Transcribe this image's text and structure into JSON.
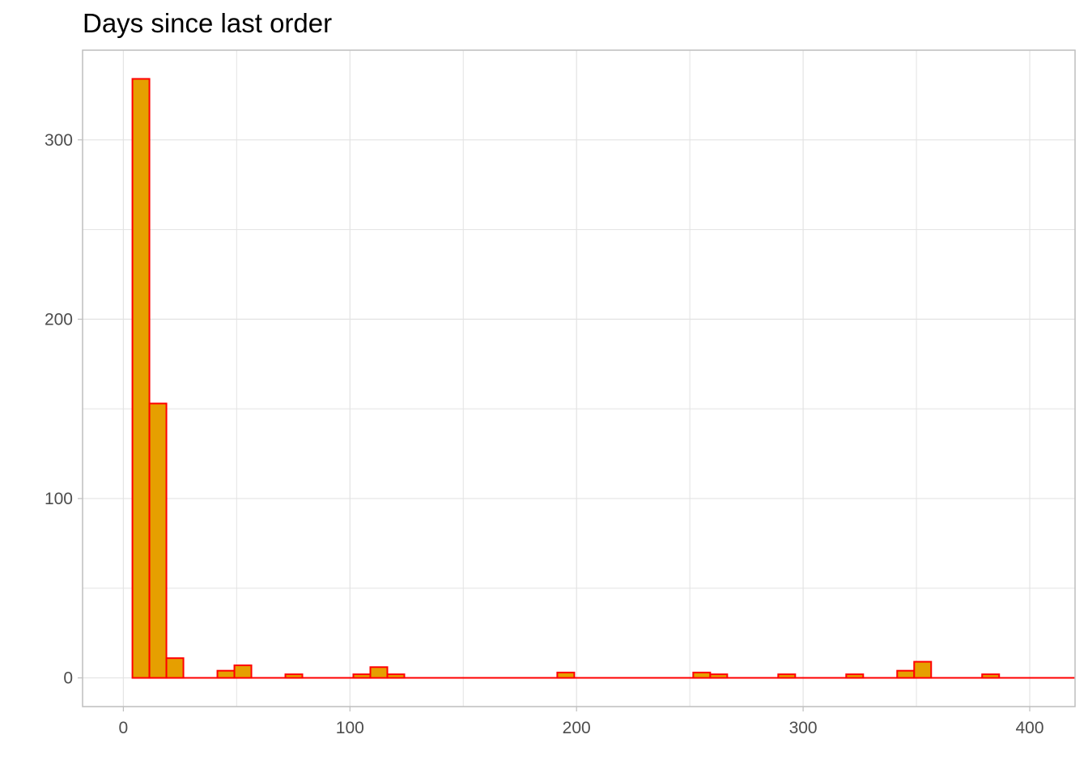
{
  "chart_data": {
    "type": "bar",
    "title": "Days since last order",
    "xlabel": "",
    "ylabel": "",
    "bin_width": 7.5,
    "xlim": [
      -18,
      420
    ],
    "ylim": [
      -16,
      350
    ],
    "x_ticks": [
      0,
      100,
      200,
      300,
      400
    ],
    "x_minor_ticks": [
      50,
      150,
      250,
      350
    ],
    "y_ticks": [
      0,
      100,
      200,
      300
    ],
    "y_minor_ticks": [
      50,
      150,
      250
    ],
    "grid": true,
    "bins": [
      {
        "x0": 4,
        "x1": 11.5,
        "count": 334
      },
      {
        "x0": 11.5,
        "x1": 19,
        "count": 153
      },
      {
        "x0": 19,
        "x1": 26.5,
        "count": 11
      },
      {
        "x0": 26.5,
        "x1": 34,
        "count": 0
      },
      {
        "x0": 34,
        "x1": 41.5,
        "count": 0
      },
      {
        "x0": 41.5,
        "x1": 49,
        "count": 4
      },
      {
        "x0": 49,
        "x1": 56.5,
        "count": 7
      },
      {
        "x0": 56.5,
        "x1": 64,
        "count": 0
      },
      {
        "x0": 64,
        "x1": 71.5,
        "count": 0
      },
      {
        "x0": 71.5,
        "x1": 79,
        "count": 2
      },
      {
        "x0": 79,
        "x1": 86.5,
        "count": 0
      },
      {
        "x0": 86.5,
        "x1": 94,
        "count": 0
      },
      {
        "x0": 94,
        "x1": 101.5,
        "count": 0
      },
      {
        "x0": 101.5,
        "x1": 109,
        "count": 2
      },
      {
        "x0": 109,
        "x1": 116.5,
        "count": 6
      },
      {
        "x0": 116.5,
        "x1": 124,
        "count": 2
      },
      {
        "x0": 191.5,
        "x1": 199,
        "count": 3
      },
      {
        "x0": 251.5,
        "x1": 259,
        "count": 3
      },
      {
        "x0": 259,
        "x1": 266.5,
        "count": 2
      },
      {
        "x0": 289,
        "x1": 296.5,
        "count": 2
      },
      {
        "x0": 319,
        "x1": 326.5,
        "count": 2
      },
      {
        "x0": 341.5,
        "x1": 349,
        "count": 4
      },
      {
        "x0": 349,
        "x1": 356.5,
        "count": 9
      },
      {
        "x0": 379,
        "x1": 386.5,
        "count": 2
      }
    ],
    "baseline_range": [
      4,
      420
    ],
    "colors": {
      "fill": "#E69F00",
      "outline": "#FF0000",
      "grid": "#E3E3E3",
      "panel_border": "#BEBEBE",
      "tick_text": "#4D4D4D"
    }
  }
}
